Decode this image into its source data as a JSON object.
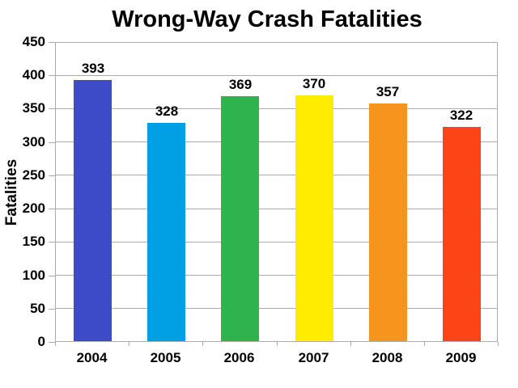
{
  "chart_data": {
    "type": "bar",
    "title": "Wrong-Way Crash Fatalities",
    "xlabel": "",
    "ylabel": "Fatalities",
    "categories": [
      "2004",
      "2005",
      "2006",
      "2007",
      "2008",
      "2009"
    ],
    "values": [
      393,
      328,
      369,
      370,
      357,
      322
    ],
    "data_labels": [
      "393",
      "328",
      "369",
      "370",
      "357",
      "322"
    ],
    "bar_colors": [
      "#3E4BC8",
      "#00A1E4",
      "#2EB34E",
      "#FFEC00",
      "#F7941E",
      "#FA4616"
    ],
    "ylim": [
      0,
      450
    ],
    "yticks": [
      0,
      50,
      100,
      150,
      200,
      250,
      300,
      350,
      400,
      450
    ],
    "grid": "horizontal",
    "gridline_color": "#ABABAB",
    "text_color": "#000000",
    "background_color": "#FFFFFF",
    "legend": "none"
  }
}
